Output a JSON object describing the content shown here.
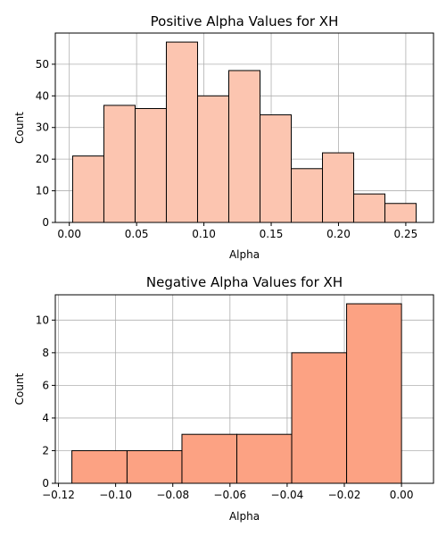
{
  "chart_data": [
    {
      "type": "bar",
      "title": "Positive Alpha Values for XH",
      "xlabel": "Alpha",
      "ylabel": "Count",
      "bin_edges": [
        0.0025,
        0.0257,
        0.0489,
        0.0721,
        0.0953,
        0.1185,
        0.1417,
        0.1649,
        0.1881,
        0.2113,
        0.2345,
        0.2577
      ],
      "values": [
        21,
        37,
        36,
        57,
        40,
        48,
        34,
        17,
        22,
        9,
        6
      ],
      "xlim": [
        -0.0104,
        0.2706
      ],
      "ylim": [
        0,
        59.85
      ],
      "xticks": [
        0.0,
        0.05,
        0.1,
        0.15,
        0.2,
        0.25
      ],
      "xtick_labels": [
        "0.00",
        "0.05",
        "0.10",
        "0.15",
        "0.20",
        "0.25"
      ],
      "yticks": [
        0,
        10,
        20,
        30,
        40,
        50
      ],
      "ytick_labels": [
        "0",
        "10",
        "20",
        "30",
        "40",
        "50"
      ],
      "grid": true,
      "bar_color": "#fcc5b0",
      "edge_color": "#000000",
      "grid_color": "#b0b0b0"
    },
    {
      "type": "bar",
      "title": "Negative Alpha Values for XH",
      "xlabel": "Alpha",
      "ylabel": "Count",
      "bin_edges": [
        -0.1153,
        -0.096,
        -0.0768,
        -0.0576,
        -0.0384,
        -0.0192,
        0.0
      ],
      "values": [
        2,
        2,
        3,
        3,
        8,
        11
      ],
      "xlim": [
        -0.1211,
        0.0112
      ],
      "ylim": [
        0,
        11.55
      ],
      "xticks": [
        -0.12,
        -0.1,
        -0.08,
        -0.06,
        -0.04,
        -0.02,
        0.0
      ],
      "xtick_labels": [
        "−0.12",
        "−0.10",
        "−0.08",
        "−0.06",
        "−0.04",
        "−0.02",
        "0.00"
      ],
      "yticks": [
        0,
        2,
        4,
        6,
        8,
        10
      ],
      "ytick_labels": [
        "0",
        "2",
        "4",
        "6",
        "8",
        "10"
      ],
      "grid": true,
      "bar_color": "#fca283",
      "edge_color": "#000000",
      "grid_color": "#b0b0b0"
    }
  ]
}
